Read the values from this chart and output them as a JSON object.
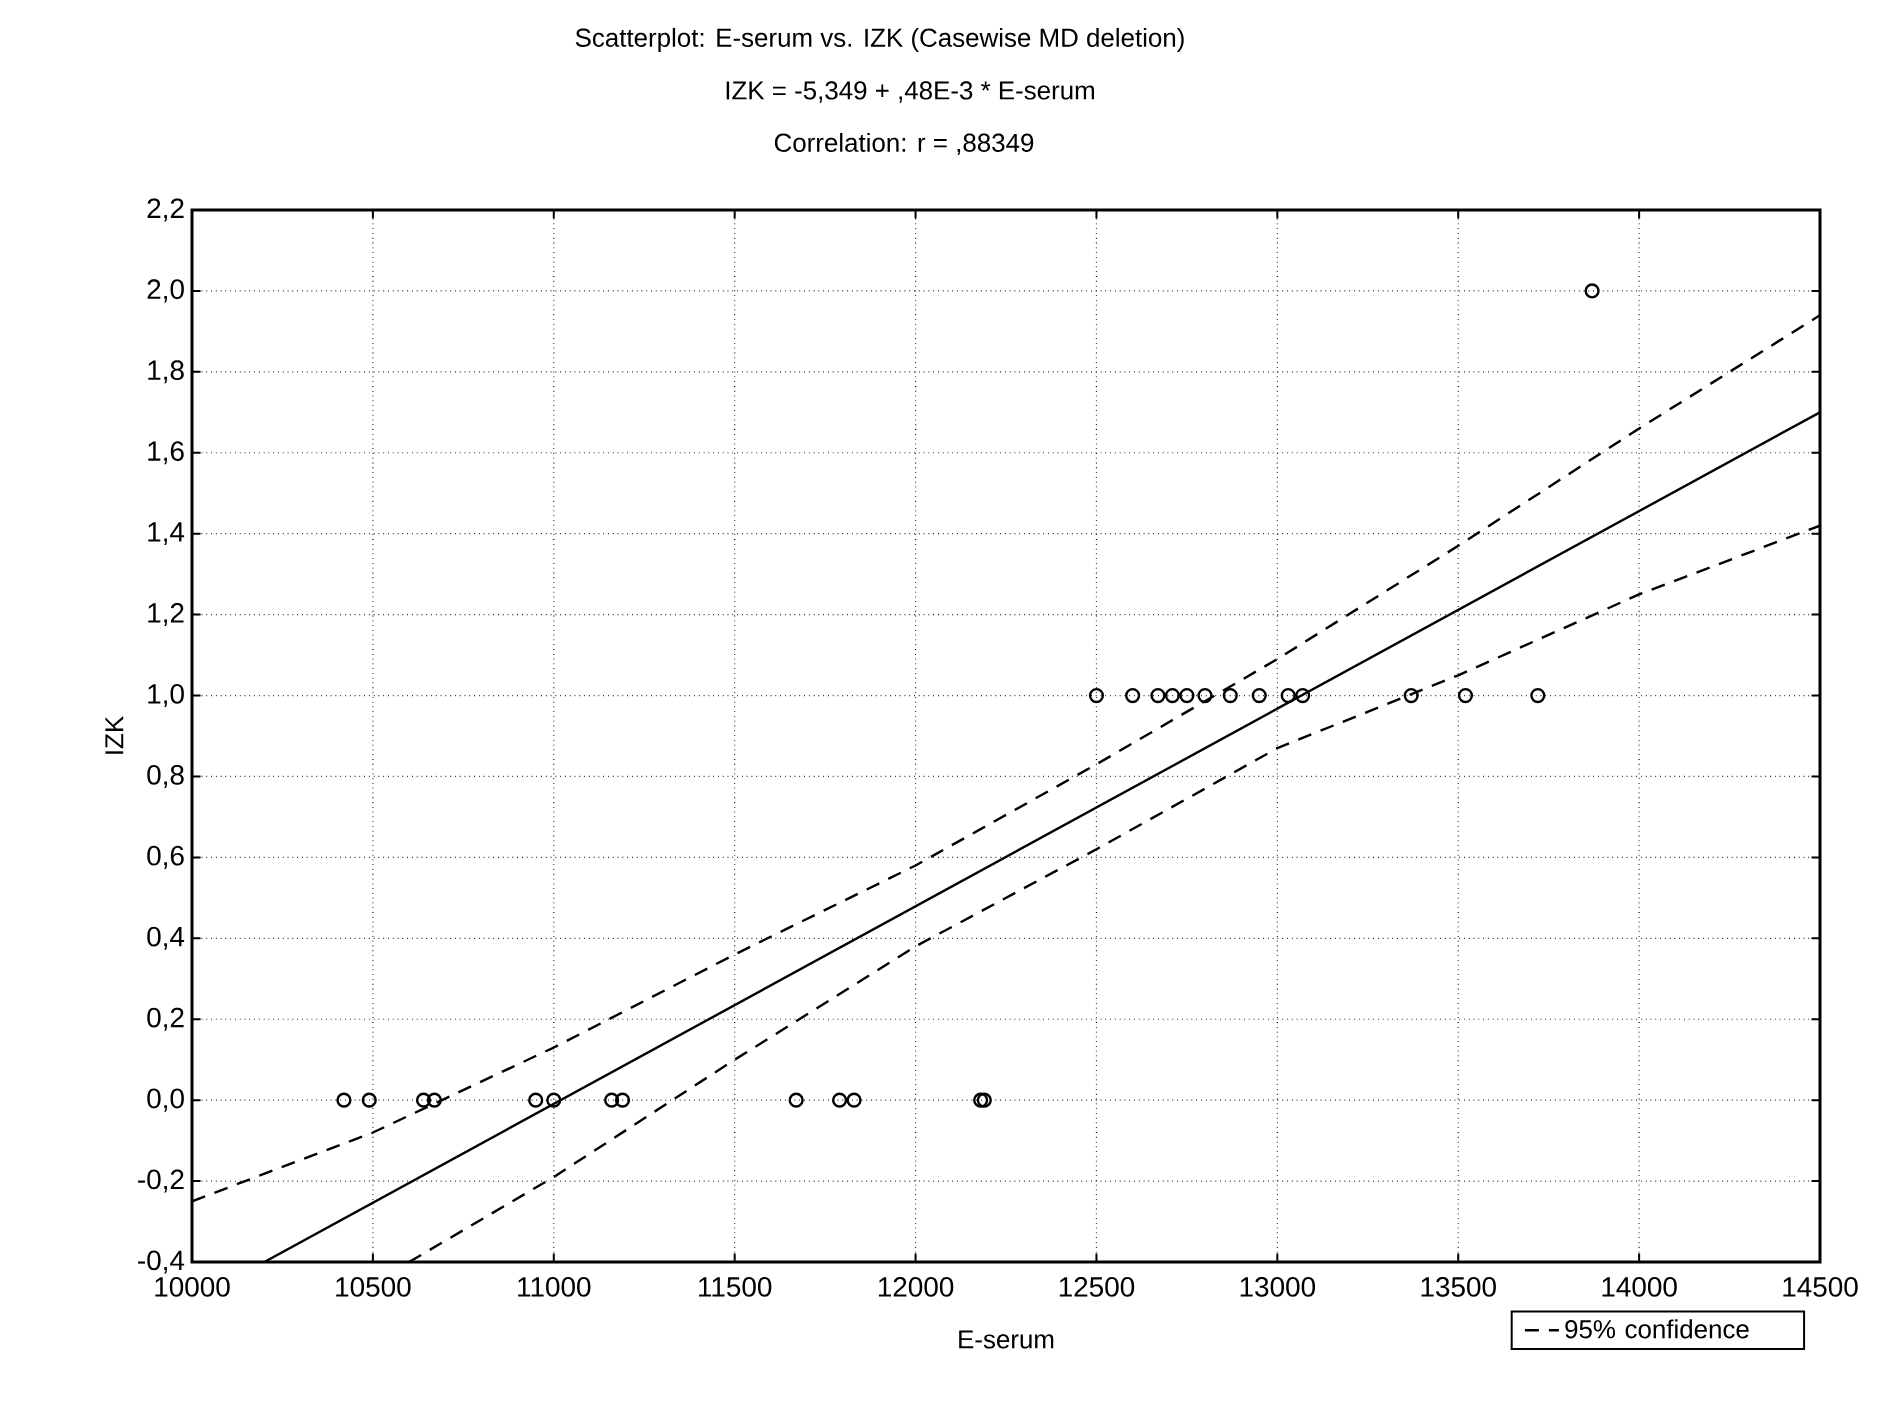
{
  "chart_data": {
    "type": "scatter",
    "title": "Scatterplot: E-serum  vs. IZK     (Casewise MD deletion)",
    "subtitle": "IZK     = -5,349 + ,48E-3 * E-serum",
    "annotations": [
      "Correlation: r = ,88349"
    ],
    "xlabel": "E-serum",
    "ylabel": "IZK",
    "xlim": [
      10000,
      14500
    ],
    "ylim": [
      -0.4,
      2.2
    ],
    "xticks": [
      10000,
      10500,
      11000,
      11500,
      12000,
      12500,
      13000,
      13500,
      14000,
      14500
    ],
    "yticks": [
      {
        "value": -0.4,
        "label": "-0,4"
      },
      {
        "value": -0.2,
        "label": "-0,2"
      },
      {
        "value": 0.0,
        "label": "0,0"
      },
      {
        "value": 0.2,
        "label": "0,2"
      },
      {
        "value": 0.4,
        "label": "0,4"
      },
      {
        "value": 0.6,
        "label": "0,6"
      },
      {
        "value": 0.8,
        "label": "0,8"
      },
      {
        "value": 1.0,
        "label": "1,0"
      },
      {
        "value": 1.2,
        "label": "1,2"
      },
      {
        "value": 1.4,
        "label": "1,4"
      },
      {
        "value": 1.6,
        "label": "1,6"
      },
      {
        "value": 1.8,
        "label": "1,8"
      },
      {
        "value": 2.0,
        "label": "2,0"
      },
      {
        "value": 2.2,
        "label": "2,2"
      }
    ],
    "grid": true,
    "legend": "bottom right",
    "series": [
      {
        "marker": "circle",
        "color": "#000000",
        "x": [
          10420,
          10490,
          10640,
          10670,
          10950,
          11000,
          11160,
          11190,
          11670,
          11790,
          11830,
          12180,
          12190,
          12500,
          12600,
          12670,
          12710,
          12750,
          12800,
          12870,
          12950,
          13030,
          13070,
          13370,
          13520,
          13720,
          13870
        ],
        "values": [
          0,
          0,
          0,
          0,
          0,
          0,
          0,
          0,
          0,
          0,
          0,
          0,
          0,
          1,
          1,
          1,
          1,
          1,
          1,
          1,
          1,
          1,
          1,
          1,
          1,
          1,
          2.0
        ]
      },
      {
        "type": "line",
        "line_style": "solid",
        "color": "#000000",
        "x": [
          10200,
          14500
        ],
        "values": [
          -0.4,
          1.7
        ]
      },
      {
        "type": "line",
        "line_style": "dashed",
        "color": "#000000",
        "name": "95% confidence",
        "x": [
          10000,
          10500,
          11000,
          11500,
          12000,
          12500,
          13000,
          13500,
          14000,
          14500
        ],
        "values": [
          -0.25,
          -0.08,
          0.13,
          0.36,
          0.58,
          0.83,
          1.09,
          1.37,
          1.66,
          1.94
        ]
      },
      {
        "type": "line",
        "line_style": "dashed",
        "color": "#000000",
        "x": [
          10600,
          11000,
          11500,
          12000,
          12500,
          13000,
          13500,
          14000,
          14500
        ],
        "values": [
          -0.4,
          -0.19,
          0.1,
          0.38,
          0.62,
          0.87,
          1.05,
          1.25,
          1.42
        ]
      }
    ]
  }
}
